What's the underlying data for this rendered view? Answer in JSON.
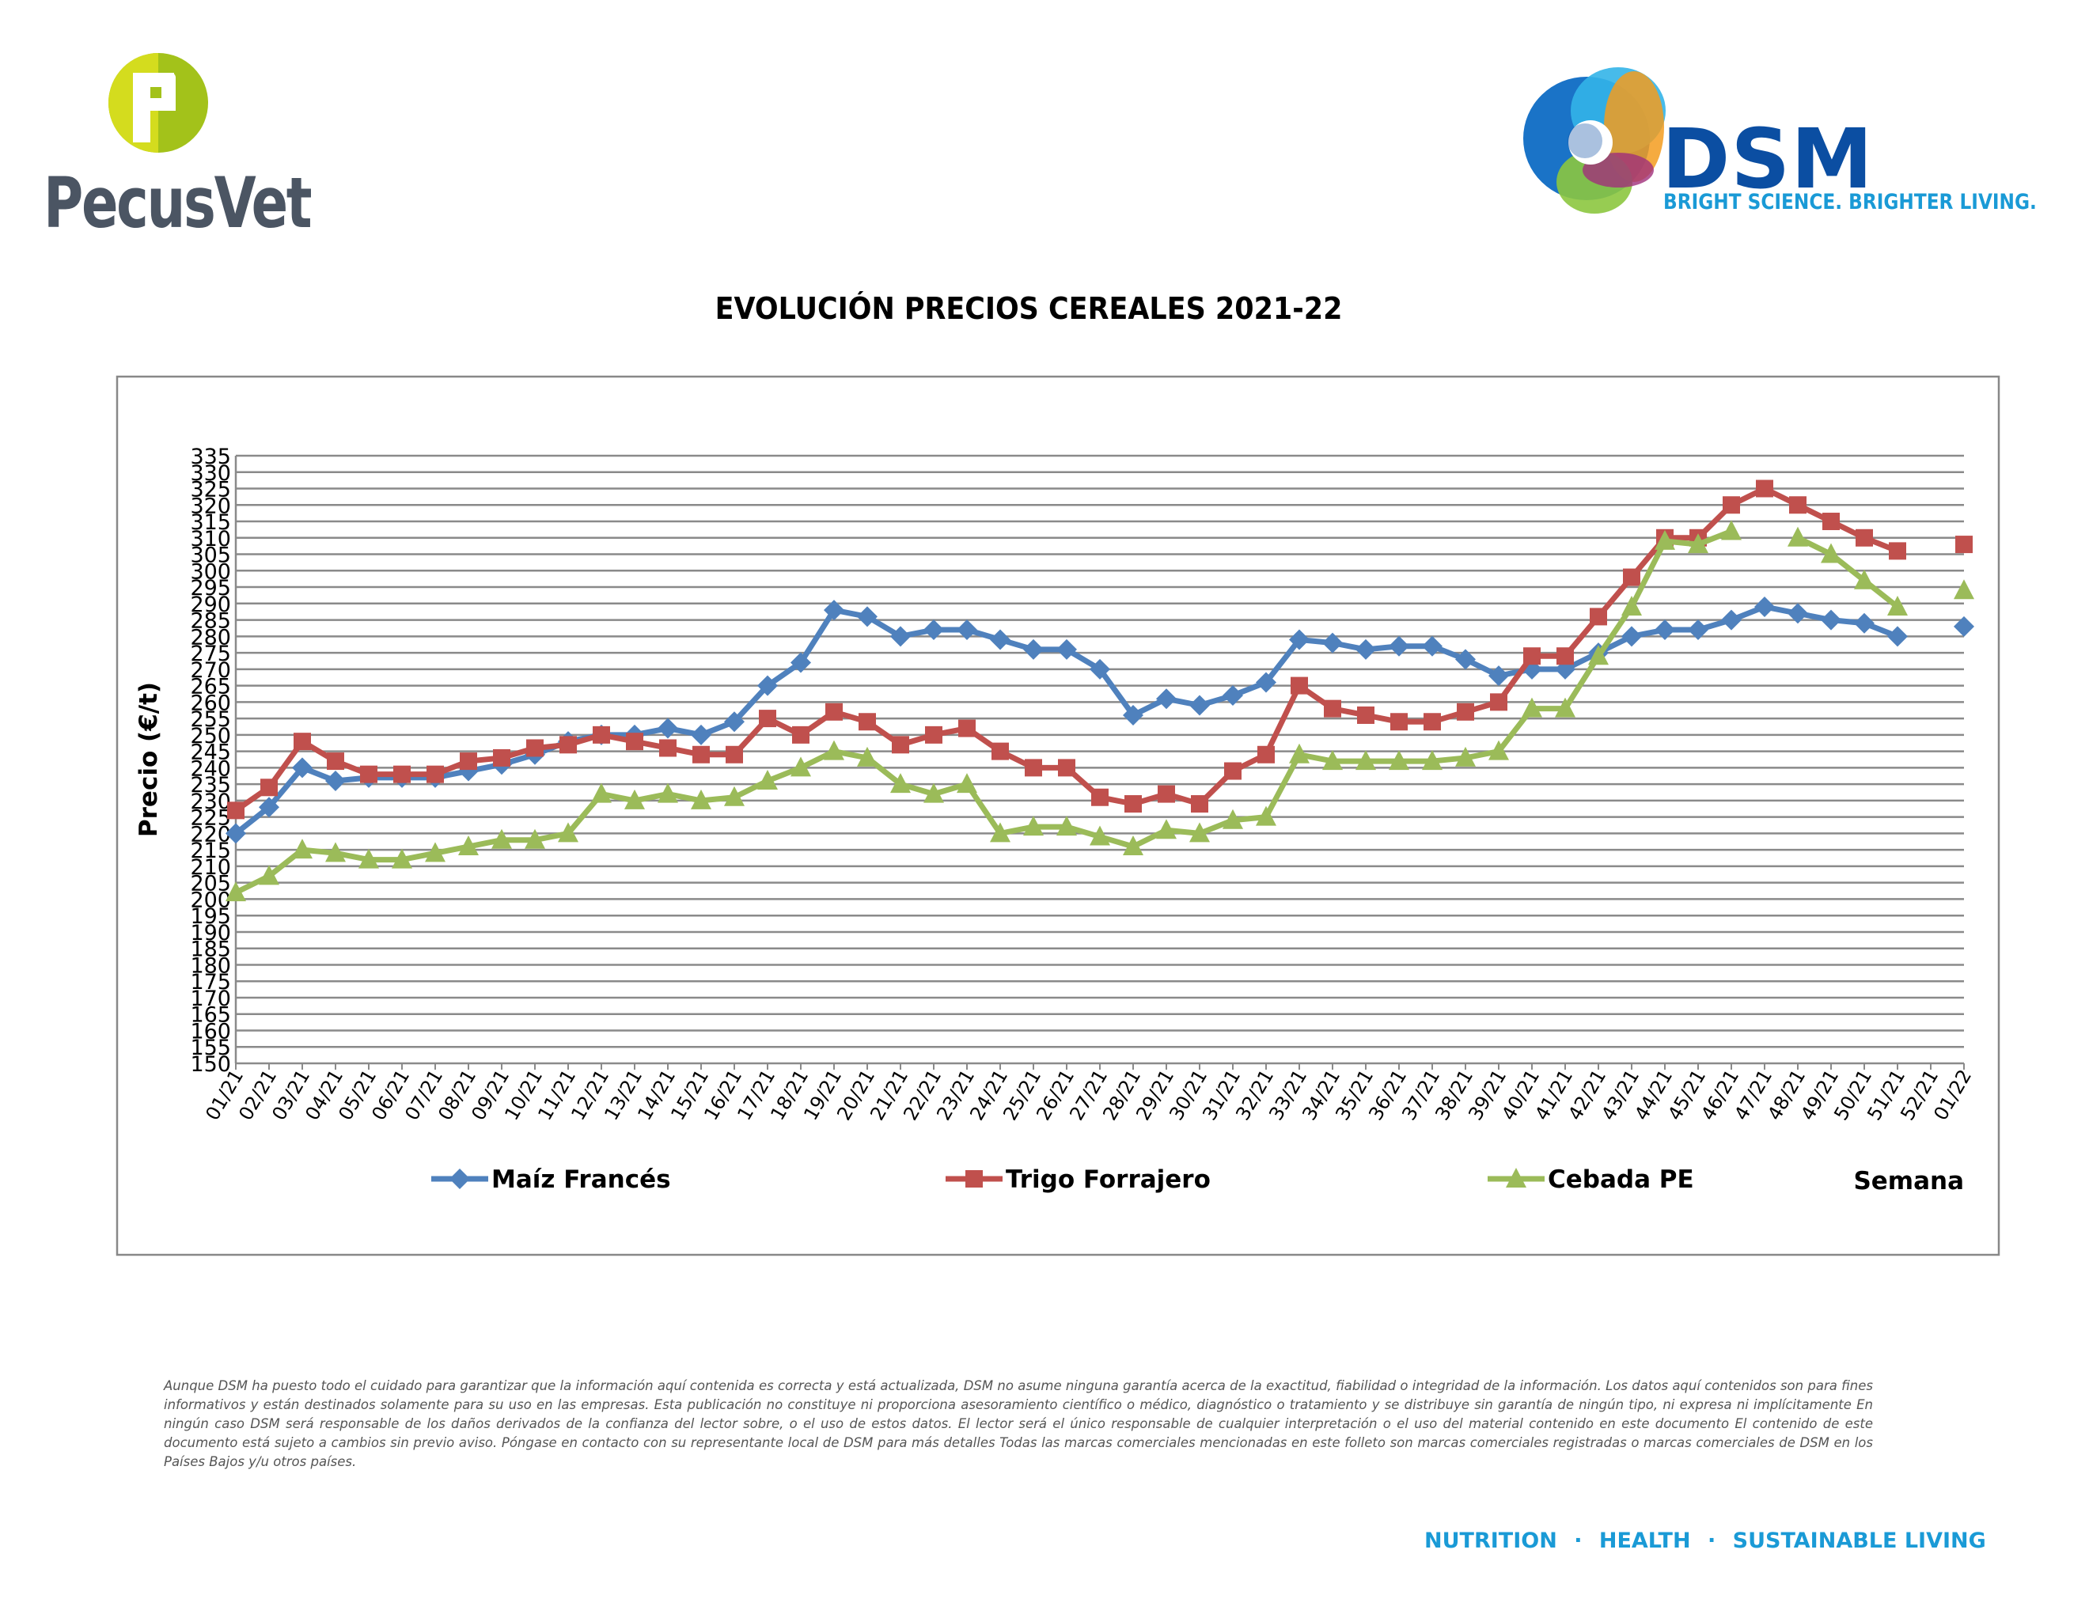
{
  "brand_left": {
    "name": "PecusVet",
    "icon": "pecusvet-p-logo-icon",
    "colors": {
      "green": "#a3c21a",
      "text": "#4b5563"
    }
  },
  "brand_right": {
    "name": "DSM",
    "tagline": "BRIGHT SCIENCE. BRIGHTER LIVING.",
    "icon": "dsm-swirl-logo-icon",
    "colors": {
      "blue": "#0b4ea2",
      "light_blue": "#1a9ad6"
    }
  },
  "chart_data": {
    "type": "line",
    "title": "EVOLUCIÓN PRECIOS CEREALES 2021-22",
    "ylabel": "Precio (€/t)",
    "xlabel": "Semana",
    "ylim": [
      150,
      335
    ],
    "ytick_step": 5,
    "grid": true,
    "legend_position": "bottom",
    "categories": [
      "01/21",
      "02/21",
      "03/21",
      "04/21",
      "05/21",
      "06/21",
      "07/21",
      "08/21",
      "09/21",
      "10/21",
      "11/21",
      "12/21",
      "13/21",
      "14/21",
      "15/21",
      "16/21",
      "17/21",
      "18/21",
      "19/21",
      "20/21",
      "21/21",
      "22/21",
      "23/21",
      "24/21",
      "25/21",
      "26/21",
      "27/21",
      "28/21",
      "29/21",
      "30/21",
      "31/21",
      "32/21",
      "33/21",
      "34/21",
      "35/21",
      "36/21",
      "37/21",
      "38/21",
      "39/21",
      "40/21",
      "41/21",
      "42/21",
      "43/21",
      "44/21",
      "45/21",
      "46/21",
      "47/21",
      "48/21",
      "49/21",
      "50/21",
      "51/21",
      "52/21",
      "01/22"
    ],
    "series": [
      {
        "name": "Maíz Francés",
        "color": "#4f81bd",
        "marker": "diamond",
        "values": [
          220,
          228,
          240,
          236,
          237,
          237,
          237,
          239,
          241,
          244,
          248,
          250,
          250,
          252,
          250,
          254,
          265,
          272,
          288,
          286,
          280,
          282,
          282,
          279,
          276,
          276,
          270,
          256,
          261,
          259,
          262,
          266,
          279,
          278,
          276,
          277,
          277,
          273,
          268,
          270,
          270,
          275,
          280,
          282,
          282,
          285,
          289,
          287,
          285,
          284,
          280,
          null,
          283
        ]
      },
      {
        "name": "Trigo Forrajero",
        "color": "#c0504d",
        "marker": "square",
        "values": [
          227,
          234,
          248,
          242,
          238,
          238,
          238,
          242,
          243,
          246,
          247,
          250,
          248,
          246,
          244,
          244,
          255,
          250,
          257,
          254,
          247,
          250,
          252,
          245,
          240,
          240,
          231,
          229,
          232,
          229,
          239,
          244,
          265,
          258,
          256,
          254,
          254,
          257,
          260,
          274,
          274,
          286,
          298,
          310,
          310,
          320,
          325,
          320,
          315,
          310,
          306,
          null,
          308
        ]
      },
      {
        "name": "Cebada PE",
        "color": "#9bbb59",
        "marker": "triangle",
        "values": [
          202,
          207,
          215,
          214,
          212,
          212,
          214,
          216,
          218,
          218,
          220,
          232,
          230,
          232,
          230,
          231,
          236,
          240,
          245,
          243,
          235,
          232,
          235,
          220,
          222,
          222,
          219,
          216,
          221,
          220,
          224,
          225,
          244,
          242,
          242,
          242,
          242,
          243,
          245,
          258,
          258,
          274,
          289,
          309,
          308,
          312,
          null,
          310,
          305,
          297,
          289,
          null,
          294
        ]
      }
    ]
  },
  "disclaimer": "Aunque DSM ha puesto todo el cuidado para garantizar que la información aquí contenida es correcta y está actualizada, DSM no asume ninguna garantía acerca de la exactitud, fiabilidad o integridad de la información. Los datos aquí contenidos son para fines informativos y están destinados solamente para su uso en las empresas. Esta publicación no constituye ni proporciona asesoramiento científico o médico, diagnóstico o tratamiento y se distribuye sin garantía de ningún tipo, ni expresa ni implícitamente En ningún caso DSM será responsable de los daños derivados de la confianza del lector sobre, o el uso de estos datos. El lector será el único responsable de cualquier interpretación o el uso del material contenido en este documento El contenido de este documento está sujeto a cambios sin previo aviso. Póngase en contacto con su representante local de DSM para más detalles Todas las marcas comerciales mencionadas en este folleto son marcas comerciales registradas o marcas comerciales de DSM en los Países Bajos y/u otros países.",
  "footer": {
    "items": [
      "NUTRITION",
      "HEALTH",
      "SUSTAINABLE LIVING"
    ],
    "separator": "·"
  }
}
